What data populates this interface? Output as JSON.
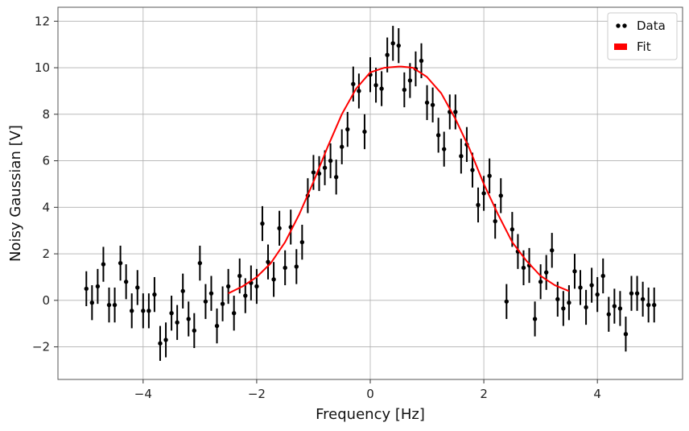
{
  "chart_data": {
    "type": "scatter",
    "title": "",
    "xlabel": "Frequency [Hz]",
    "ylabel": "Noisy Gaussian [V]",
    "xlim": [
      -5.5,
      5.5
    ],
    "ylim": [
      -3.4,
      12.6
    ],
    "xticks": [
      -4,
      -2,
      0,
      2,
      4
    ],
    "yticks": [
      -2,
      0,
      2,
      4,
      6,
      8,
      10,
      12
    ],
    "xtick_labels": [
      "−4",
      "−2",
      "0",
      "2",
      "4"
    ],
    "ytick_labels": [
      "−2",
      "0",
      "2",
      "4",
      "6",
      "8",
      "10",
      "12"
    ],
    "grid": true,
    "legend_position": "top-right",
    "legend": [
      {
        "label": "Data",
        "color": "#000000",
        "marker": "dots"
      },
      {
        "label": "Fit",
        "color": "#ff0000",
        "marker": "patch"
      }
    ],
    "series": [
      {
        "name": "Data",
        "kind": "errorbar",
        "color": "#000000",
        "yerr": 0.75,
        "x": [
          -5.0,
          -4.9,
          -4.8,
          -4.7,
          -4.6,
          -4.5,
          -4.4,
          -4.3,
          -4.2,
          -4.1,
          -4.0,
          -3.9,
          -3.8,
          -3.7,
          -3.6,
          -3.5,
          -3.4,
          -3.3,
          -3.2,
          -3.1,
          -3.0,
          -2.9,
          -2.8,
          -2.7,
          -2.6,
          -2.5,
          -2.4,
          -2.3,
          -2.2,
          -2.1,
          -2.0,
          -1.9,
          -1.8,
          -1.7,
          -1.6,
          -1.5,
          -1.4,
          -1.3,
          -1.2,
          -1.1,
          -1.0,
          -0.9,
          -0.8,
          -0.7,
          -0.6,
          -0.5,
          -0.4,
          -0.3,
          -0.2,
          -0.1,
          0.0,
          0.1,
          0.2,
          0.3,
          0.4,
          0.5,
          0.6,
          0.7,
          0.8,
          0.9,
          1.0,
          1.1,
          1.2,
          1.3,
          1.4,
          1.5,
          1.6,
          1.7,
          1.8,
          1.9,
          2.0,
          2.1,
          2.2,
          2.3,
          2.4,
          2.5,
          2.6,
          2.7,
          2.8,
          2.9,
          3.0,
          3.1,
          3.2,
          3.3,
          3.4,
          3.5,
          3.6,
          3.7,
          3.8,
          3.9,
          4.0,
          4.1,
          4.2,
          4.3,
          4.4,
          4.5,
          4.6,
          4.7,
          4.8,
          4.9,
          5.0
        ],
        "y": [
          0.5,
          -0.1,
          0.6,
          1.55,
          -0.2,
          -0.2,
          1.6,
          0.8,
          -0.45,
          0.55,
          -0.45,
          -0.45,
          0.25,
          -1.85,
          -1.7,
          -0.55,
          -0.95,
          0.4,
          -0.8,
          -1.3,
          1.6,
          -0.05,
          0.3,
          -1.1,
          -0.15,
          0.6,
          -0.55,
          1.05,
          0.2,
          0.75,
          0.6,
          3.3,
          1.65,
          0.9,
          3.1,
          1.4,
          3.15,
          1.45,
          2.5,
          4.5,
          5.5,
          5.45,
          5.7,
          6.0,
          5.3,
          6.6,
          7.35,
          9.3,
          9.0,
          7.25,
          9.7,
          9.25,
          9.1,
          10.55,
          11.05,
          10.95,
          9.05,
          9.45,
          9.95,
          10.3,
          8.5,
          8.4,
          7.1,
          6.5,
          8.1,
          8.1,
          6.2,
          6.7,
          5.6,
          4.1,
          4.6,
          5.35,
          3.4,
          4.5,
          -0.05,
          3.05,
          2.1,
          1.4,
          1.5,
          -0.8,
          0.8,
          1.2,
          2.15,
          0.05,
          -0.35,
          -0.1,
          1.25,
          0.55,
          -0.3,
          0.65,
          0.25,
          1.05,
          -0.6,
          -0.25,
          -0.35,
          -1.45,
          0.3,
          0.3,
          0.05,
          -0.2,
          -0.2
        ]
      },
      {
        "name": "Fit",
        "kind": "line",
        "color": "#ff0000",
        "x": [
          -2.5,
          -2.25,
          -2.0,
          -1.75,
          -1.5,
          -1.25,
          -1.0,
          -0.75,
          -0.5,
          -0.25,
          0.0,
          0.25,
          0.5,
          0.55,
          0.75,
          1.0,
          1.25,
          1.5,
          1.75,
          2.0,
          2.25,
          2.5,
          2.75,
          3.0,
          3.25,
          3.5
        ],
        "y": [
          0.3,
          0.6,
          1.0,
          1.6,
          2.5,
          3.7,
          5.1,
          6.6,
          8.0,
          9.1,
          9.8,
          10.0,
          10.05,
          10.05,
          10.0,
          9.6,
          8.9,
          7.8,
          6.5,
          5.0,
          3.7,
          2.5,
          1.7,
          1.05,
          0.65,
          0.4
        ]
      }
    ]
  }
}
